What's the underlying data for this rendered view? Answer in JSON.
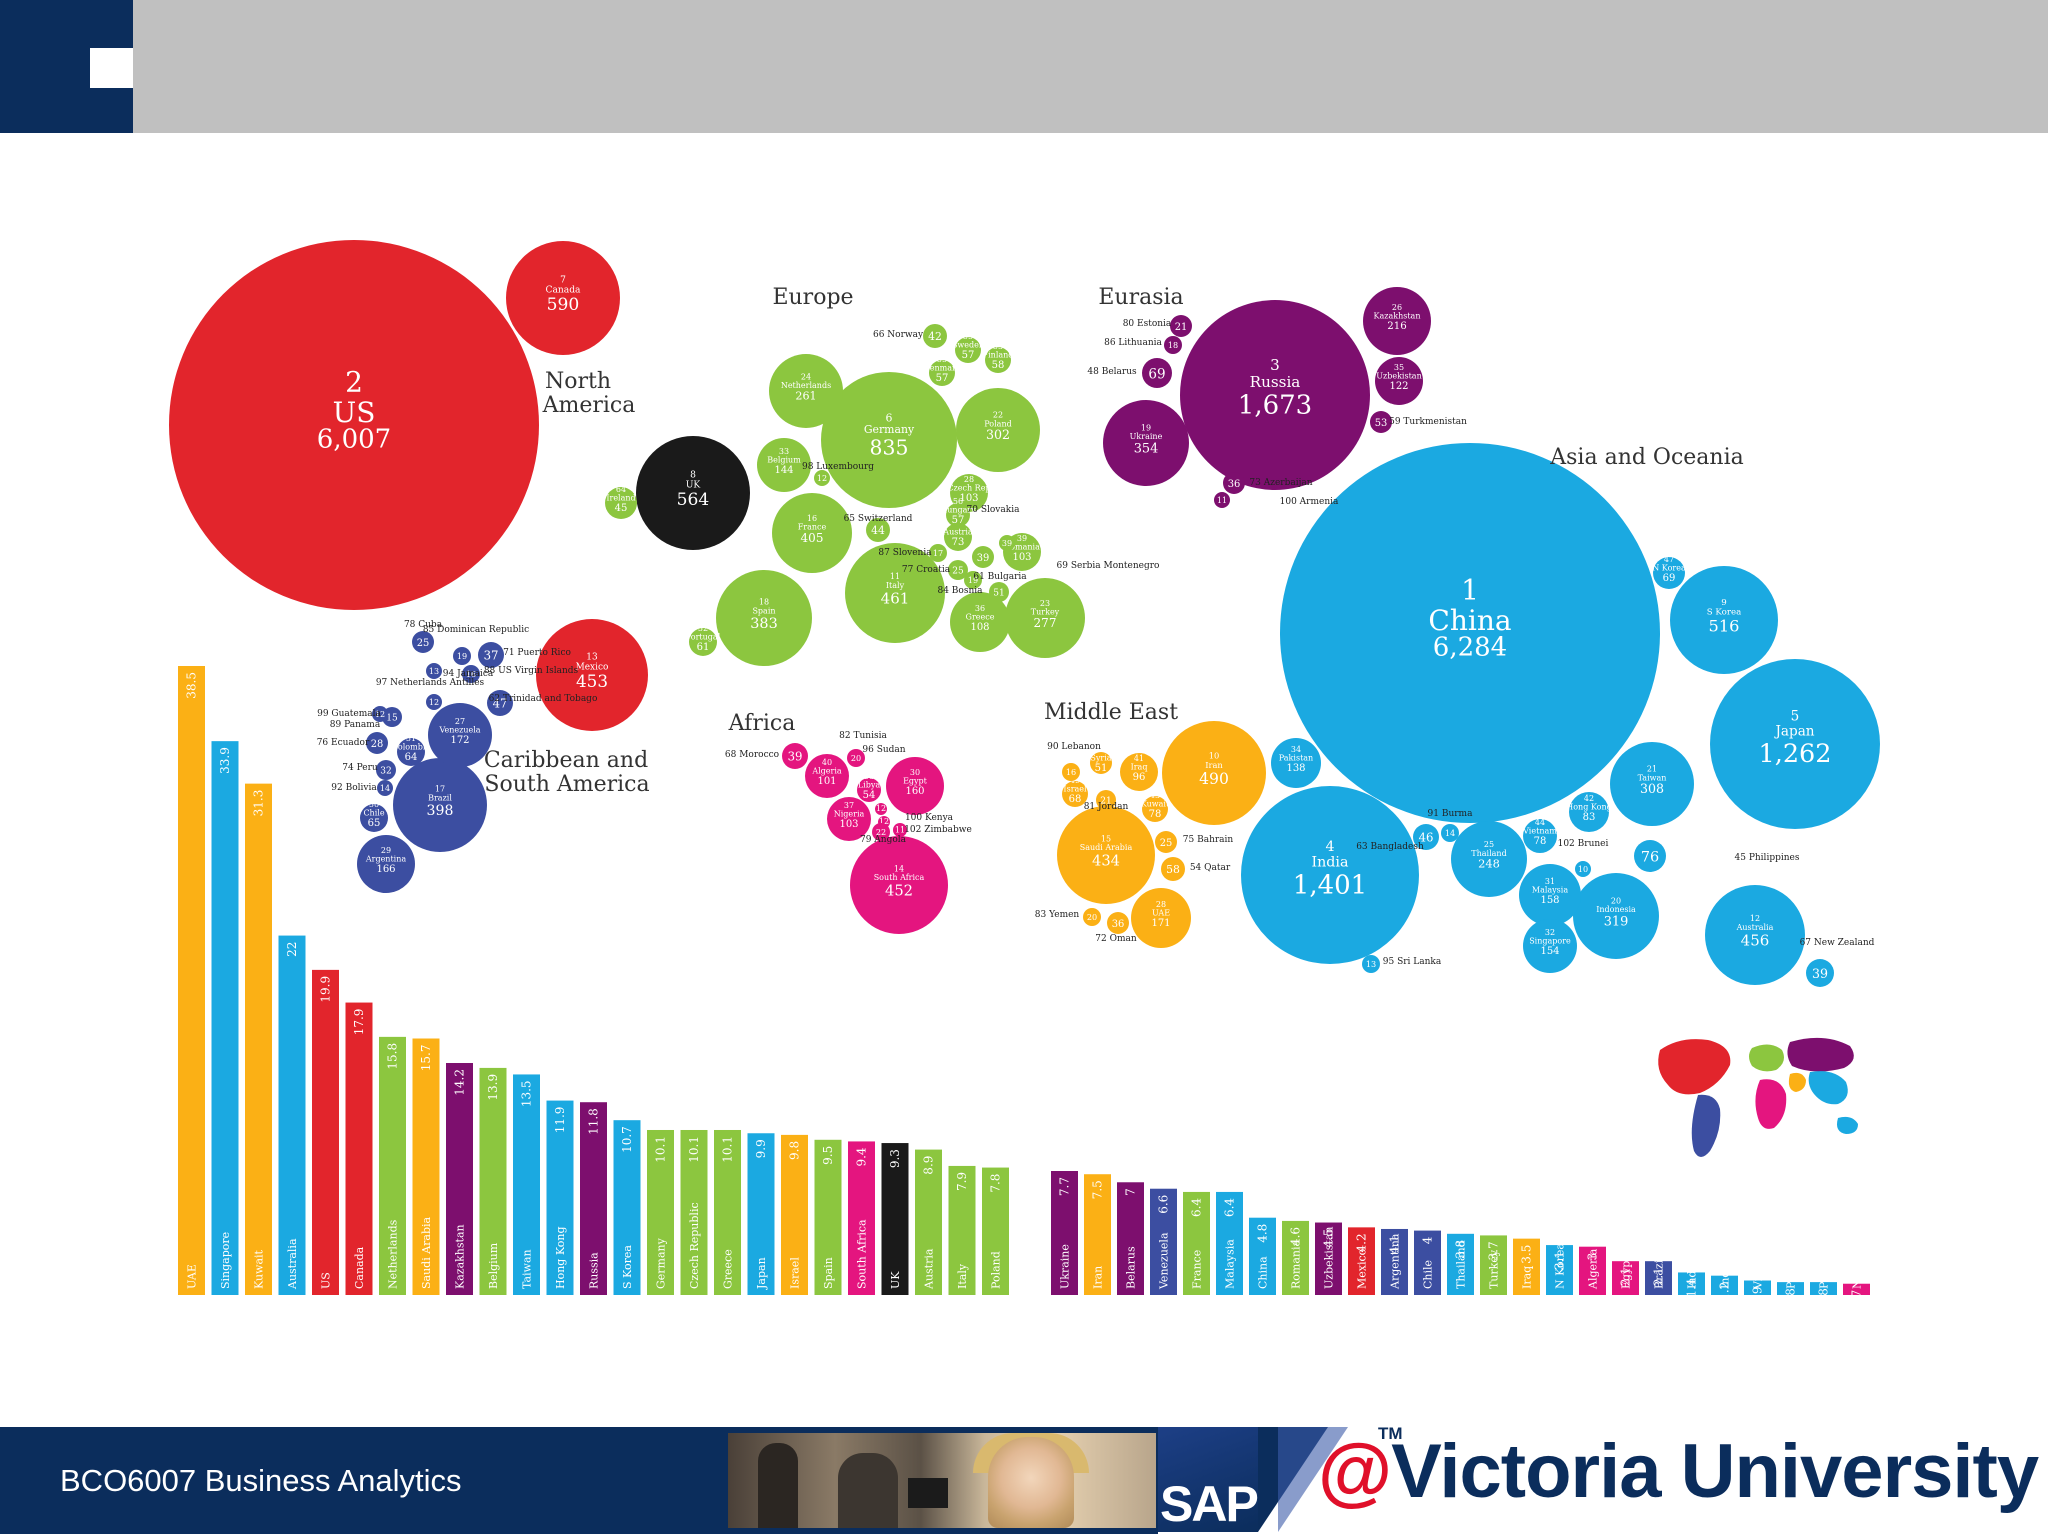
{
  "footer": {
    "course": "BCO6007 Business Analytics",
    "logo_sap": "SAP",
    "logo_tm": "TM",
    "logo_at": "@",
    "logo_university": "Victoria University"
  },
  "region_colors": {
    "north_america": "#e2252c",
    "europe": "#8cc63f",
    "uk": "#1a1a1a",
    "eurasia": "#7d0f6e",
    "asia_oceania": "#1ba9e1",
    "middle_east": "#fbb015",
    "africa": "#e4157f",
    "south_america": "#3c4ea1"
  },
  "chart_data": [
    {
      "type": "bubble",
      "regions": [
        {
          "label": "North America",
          "label2": "America",
          "label1": "North"
        },
        {
          "label": "Europe"
        },
        {
          "label": "Eurasia"
        },
        {
          "label": "Asia and Oceania"
        },
        {
          "label": "Middle East"
        },
        {
          "label": "Africa"
        },
        {
          "label": "Caribbean and South America",
          "label1": "Caribbean and",
          "label2": "South America"
        }
      ],
      "bubbles": [
        {
          "rank": "2",
          "name": "US",
          "value": "6,007",
          "region": "north_america"
        },
        {
          "rank": "7",
          "name": "Canada",
          "value": "590",
          "region": "north_america"
        },
        {
          "rank": "13",
          "name": "Mexico",
          "value": "453",
          "region": "north_america"
        },
        {
          "rank": "8",
          "name": "UK",
          "value": "564",
          "region": "uk"
        },
        {
          "rank": "64",
          "name": "Ireland",
          "value": "45",
          "region": "europe"
        },
        {
          "rank": "6",
          "name": "Germany",
          "value": "835",
          "region": "europe"
        },
        {
          "rank": "24",
          "name": "Netherlands",
          "value": "261",
          "region": "europe"
        },
        {
          "rank": "22",
          "name": "Poland",
          "value": "302",
          "region": "europe"
        },
        {
          "rank": "16",
          "name": "France",
          "value": "405",
          "region": "europe"
        },
        {
          "rank": "11",
          "name": "Italy",
          "value": "461",
          "region": "europe"
        },
        {
          "rank": "18",
          "name": "Spain",
          "value": "383",
          "region": "europe"
        },
        {
          "rank": "23",
          "name": "Turkey",
          "value": "277",
          "region": "europe"
        },
        {
          "rank": "36",
          "name": "Greece",
          "value": "108",
          "region": "europe"
        },
        {
          "rank": "33",
          "name": "Belgium",
          "value": "144",
          "region": "europe"
        },
        {
          "rank": "28",
          "name": "Czech Rep",
          "value": "103",
          "region": "europe"
        },
        {
          "rank": "39",
          "name": "Romania",
          "value": "103",
          "region": "europe"
        },
        {
          "rank": "52",
          "name": "Portugal",
          "value": "61",
          "region": "europe"
        },
        {
          "rank": "55",
          "name": "Denmark",
          "value": "57",
          "region": "europe"
        },
        {
          "rank": "55",
          "name": "Sweden",
          "value": "57",
          "region": "europe"
        },
        {
          "rank": "53",
          "name": "Finland",
          "value": "58",
          "region": "europe"
        },
        {
          "rank": "",
          "name": "",
          "value": "42",
          "region": "europe"
        },
        {
          "rank": "",
          "name": "",
          "value": "44",
          "region": "europe"
        },
        {
          "rank": "46",
          "name": "Austria",
          "value": "73",
          "region": "europe"
        },
        {
          "rank": "56",
          "name": "Hungary",
          "value": "57",
          "region": "europe"
        },
        {
          "rank": "",
          "name": "",
          "value": "39",
          "region": "europe"
        },
        {
          "rank": "",
          "name": "",
          "value": "25",
          "region": "europe"
        },
        {
          "rank": "",
          "name": "",
          "value": "19",
          "region": "europe"
        },
        {
          "rank": "",
          "name": "",
          "value": "17",
          "region": "europe"
        },
        {
          "rank": "",
          "name": "",
          "value": "51",
          "region": "europe"
        },
        {
          "rank": "",
          "name": "",
          "value": "39",
          "region": "europe"
        },
        {
          "rank": "",
          "name": "",
          "value": "12",
          "region": "europe"
        },
        {
          "rank": "3",
          "name": "Russia",
          "value": "1,673",
          "region": "eurasia"
        },
        {
          "rank": "19",
          "name": "Ukraine",
          "value": "354",
          "region": "eurasia"
        },
        {
          "rank": "26",
          "name": "Kazakhstan",
          "value": "216",
          "region": "eurasia"
        },
        {
          "rank": "35",
          "name": "Uzbekistan",
          "value": "122",
          "region": "eurasia"
        },
        {
          "rank": "",
          "name": "",
          "value": "69",
          "region": "eurasia"
        },
        {
          "rank": "",
          "name": "",
          "value": "21",
          "region": "eurasia"
        },
        {
          "rank": "",
          "name": "",
          "value": "18",
          "region": "eurasia"
        },
        {
          "rank": "",
          "name": "",
          "value": "53",
          "region": "eurasia"
        },
        {
          "rank": "",
          "name": "",
          "value": "36",
          "region": "eurasia"
        },
        {
          "rank": "",
          "name": "",
          "value": "11",
          "region": "eurasia"
        },
        {
          "rank": "1",
          "name": "China",
          "value": "6,284",
          "region": "asia_oceania"
        },
        {
          "rank": "5",
          "name": "Japan",
          "value": "1,262",
          "region": "asia_oceania"
        },
        {
          "rank": "9",
          "name": "S Korea",
          "value": "516",
          "region": "asia_oceania"
        },
        {
          "rank": "4",
          "name": "India",
          "value": "1,401",
          "region": "asia_oceania"
        },
        {
          "rank": "21",
          "name": "Taiwan",
          "value": "308",
          "region": "asia_oceania"
        },
        {
          "rank": "20",
          "name": "Indonesia",
          "value": "319",
          "region": "asia_oceania"
        },
        {
          "rank": "12",
          "name": "Australia",
          "value": "456",
          "region": "asia_oceania"
        },
        {
          "rank": "25",
          "name": "Thailand",
          "value": "248",
          "region": "asia_oceania"
        },
        {
          "rank": "31",
          "name": "Malaysia",
          "value": "158",
          "region": "asia_oceania"
        },
        {
          "rank": "32",
          "name": "Singapore",
          "value": "154",
          "region": "asia_oceania"
        },
        {
          "rank": "34",
          "name": "Pakistan",
          "value": "138",
          "region": "asia_oceania"
        },
        {
          "rank": "42",
          "name": "Hong Kong",
          "value": "83",
          "region": "asia_oceania"
        },
        {
          "rank": "44",
          "name": "Vietnam",
          "value": "78",
          "region": "asia_oceania"
        },
        {
          "rank": "47",
          "name": "N Korea",
          "value": "69",
          "region": "asia_oceania"
        },
        {
          "rank": "",
          "name": "",
          "value": "76",
          "region": "asia_oceania"
        },
        {
          "rank": "",
          "name": "",
          "value": "46",
          "region": "asia_oceania"
        },
        {
          "rank": "",
          "name": "",
          "value": "14",
          "region": "asia_oceania"
        },
        {
          "rank": "",
          "name": "",
          "value": "39",
          "region": "asia_oceania"
        },
        {
          "rank": "",
          "name": "",
          "value": "10",
          "region": "asia_oceania"
        },
        {
          "rank": "",
          "name": "",
          "value": "13",
          "region": "asia_oceania"
        },
        {
          "rank": "10",
          "name": "Iran",
          "value": "490",
          "region": "middle_east"
        },
        {
          "rank": "15",
          "name": "Saudi Arabia",
          "value": "434",
          "region": "middle_east"
        },
        {
          "rank": "28",
          "name": "UAE",
          "value": "171",
          "region": "middle_east"
        },
        {
          "rank": "41",
          "name": "Iraq",
          "value": "96",
          "region": "middle_east"
        },
        {
          "rank": "43",
          "name": "Kuwait",
          "value": "78",
          "region": "middle_east"
        },
        {
          "rank": "60",
          "name": "Syria",
          "value": "51",
          "region": "middle_east"
        },
        {
          "rank": "49",
          "name": "Israel",
          "value": "68",
          "region": "middle_east"
        },
        {
          "rank": "",
          "name": "",
          "value": "16",
          "region": "middle_east"
        },
        {
          "rank": "",
          "name": "",
          "value": "21",
          "region": "middle_east"
        },
        {
          "rank": "",
          "name": "",
          "value": "25",
          "region": "middle_east"
        },
        {
          "rank": "",
          "name": "",
          "value": "58",
          "region": "middle_east"
        },
        {
          "rank": "",
          "name": "",
          "value": "20",
          "region": "middle_east"
        },
        {
          "rank": "",
          "name": "",
          "value": "36",
          "region": "middle_east"
        },
        {
          "rank": "14",
          "name": "South Africa",
          "value": "452",
          "region": "africa"
        },
        {
          "rank": "30",
          "name": "Egypt",
          "value": "160",
          "region": "africa"
        },
        {
          "rank": "40",
          "name": "Algeria",
          "value": "101",
          "region": "africa"
        },
        {
          "rank": "37",
          "name": "Nigeria",
          "value": "103",
          "region": "africa"
        },
        {
          "rank": "58",
          "name": "Libya",
          "value": "54",
          "region": "africa"
        },
        {
          "rank": "",
          "name": "",
          "value": "39",
          "region": "africa"
        },
        {
          "rank": "",
          "name": "",
          "value": "20",
          "region": "africa"
        },
        {
          "rank": "",
          "name": "",
          "value": "12",
          "region": "africa"
        },
        {
          "rank": "",
          "name": "",
          "value": "12",
          "region": "africa"
        },
        {
          "rank": "",
          "name": "",
          "value": "22",
          "region": "africa"
        },
        {
          "rank": "",
          "name": "",
          "value": "11",
          "region": "africa"
        },
        {
          "rank": "17",
          "name": "Brazil",
          "value": "398",
          "region": "south_america"
        },
        {
          "rank": "27",
          "name": "Venezuela",
          "value": "172",
          "region": "south_america"
        },
        {
          "rank": "29",
          "name": "Argentina",
          "value": "166",
          "region": "south_america"
        },
        {
          "rank": "50",
          "name": "Chile",
          "value": "65",
          "region": "south_america"
        },
        {
          "rank": "51",
          "name": "Colombia",
          "value": "64",
          "region": "south_america"
        },
        {
          "rank": "",
          "name": "",
          "value": "47",
          "region": "south_america"
        },
        {
          "rank": "",
          "name": "",
          "value": "37",
          "region": "south_america"
        },
        {
          "rank": "",
          "name": "",
          "value": "32",
          "region": "south_america"
        },
        {
          "rank": "",
          "name": "",
          "value": "28",
          "region": "south_america"
        },
        {
          "rank": "",
          "name": "",
          "value": "25",
          "region": "south_america"
        },
        {
          "rank": "",
          "name": "",
          "value": "19",
          "region": "south_america"
        },
        {
          "rank": "",
          "name": "",
          "value": "16",
          "region": "south_america"
        },
        {
          "rank": "",
          "name": "",
          "value": "15",
          "region": "south_america"
        },
        {
          "rank": "",
          "name": "",
          "value": "14",
          "region": "south_america"
        },
        {
          "rank": "",
          "name": "",
          "value": "13",
          "region": "south_america"
        },
        {
          "rank": "",
          "name": "",
          "value": "12",
          "region": "south_america"
        },
        {
          "rank": "",
          "name": "",
          "value": "12",
          "region": "south_america"
        }
      ],
      "callouts": [
        "66 Norway",
        "98 Luxembourg",
        "65 Switzerland",
        "87 Slovenia",
        "77 Croatia",
        "84 Bosnia",
        "61 Bulgaria",
        "70 Slovakia",
        "69 Serbia Montenegro",
        "80 Estonia",
        "86 Lithuania",
        "48 Belarus",
        "59 Turkmenistan",
        "73 Azerbaijan",
        "100 Armenia",
        "45 Philippines",
        "63 Bangladesh",
        "91 Burma",
        "102 Brunei",
        "95 Sri Lanka",
        "67 New Zealand",
        "90 Lebanon",
        "81 Jordan",
        "75 Bahrain",
        "54 Qatar",
        "83 Yemen",
        "72 Oman",
        "68 Morocco",
        "82 Tunisia",
        "96 Sudan",
        "100 Kenya",
        "102 Zimbabwe",
        "79 Angola",
        "78 Cuba",
        "85 Dominican Republic",
        "94 Jamaica",
        "71 Puerto Rico",
        "88 US Virgin Islands",
        "97 Netherlands Antilles",
        "62 Trinidad and Tobago",
        "99 Guatemala",
        "89 Panama",
        "76 Ecuador",
        "74 Peru",
        "92 Bolivia"
      ]
    },
    {
      "type": "bar",
      "categories": [
        "UAE",
        "Singapore",
        "Kuwait",
        "Australia",
        "US",
        "Canada",
        "Netherlands",
        "Saudi Arabia",
        "Kazakhstan",
        "Belgium",
        "Taiwan",
        "Hong Kong",
        "Russia",
        "S Korea",
        "Germany",
        "Czech Republic",
        "Greece",
        "Japan",
        "Israel",
        "Spain",
        "South Africa",
        "UK",
        "Austria",
        "Italy",
        "Poland"
      ],
      "values": [
        38.5,
        33.9,
        31.3,
        22,
        19.9,
        17.9,
        15.8,
        15.7,
        14.2,
        13.9,
        13.5,
        11.9,
        11.8,
        10.7,
        10.1,
        10.1,
        10.1,
        9.9,
        9.8,
        9.5,
        9.4,
        9.3,
        8.9,
        7.9,
        7.8
      ],
      "regions": [
        "middle_east",
        "asia_oceania",
        "middle_east",
        "asia_oceania",
        "north_america",
        "north_america",
        "europe",
        "middle_east",
        "eurasia",
        "europe",
        "asia_oceania",
        "asia_oceania",
        "eurasia",
        "asia_oceania",
        "europe",
        "europe",
        "europe",
        "asia_oceania",
        "middle_east",
        "europe",
        "africa",
        "uk",
        "europe",
        "europe",
        "europe"
      ],
      "ylim": [
        0,
        38.5
      ]
    },
    {
      "type": "bar",
      "categories": [
        "Ukraine",
        "Iran",
        "Belarus",
        "Venezuela",
        "France",
        "Malaysia",
        "China",
        "Romania",
        "Uzbekistan",
        "Mexico",
        "Argentina",
        "Chile",
        "Thailand",
        "Turkey",
        "Iraq",
        "N Korea",
        "Algeria",
        "Egypt",
        "Brazil",
        "Indonesia",
        "India",
        "Vietnam",
        "Pakistan",
        "Philippines",
        "Nigeria"
      ],
      "values": [
        7.7,
        7.5,
        7,
        6.6,
        6.4,
        6.4,
        4.8,
        4.6,
        4.5,
        4.2,
        4.1,
        4,
        3.8,
        3.7,
        3.5,
        3.1,
        3,
        2.1,
        2.1,
        1.4,
        1.2,
        0.9,
        0.8,
        0.8,
        0.7
      ],
      "regions": [
        "eurasia",
        "middle_east",
        "eurasia",
        "south_america",
        "europe",
        "asia_oceania",
        "asia_oceania",
        "europe",
        "eurasia",
        "north_america",
        "south_america",
        "south_america",
        "asia_oceania",
        "europe",
        "middle_east",
        "asia_oceania",
        "africa",
        "africa",
        "south_america",
        "asia_oceania",
        "asia_oceania",
        "asia_oceania",
        "asia_oceania",
        "asia_oceania",
        "africa"
      ],
      "ylim": [
        0,
        7.7
      ]
    }
  ]
}
